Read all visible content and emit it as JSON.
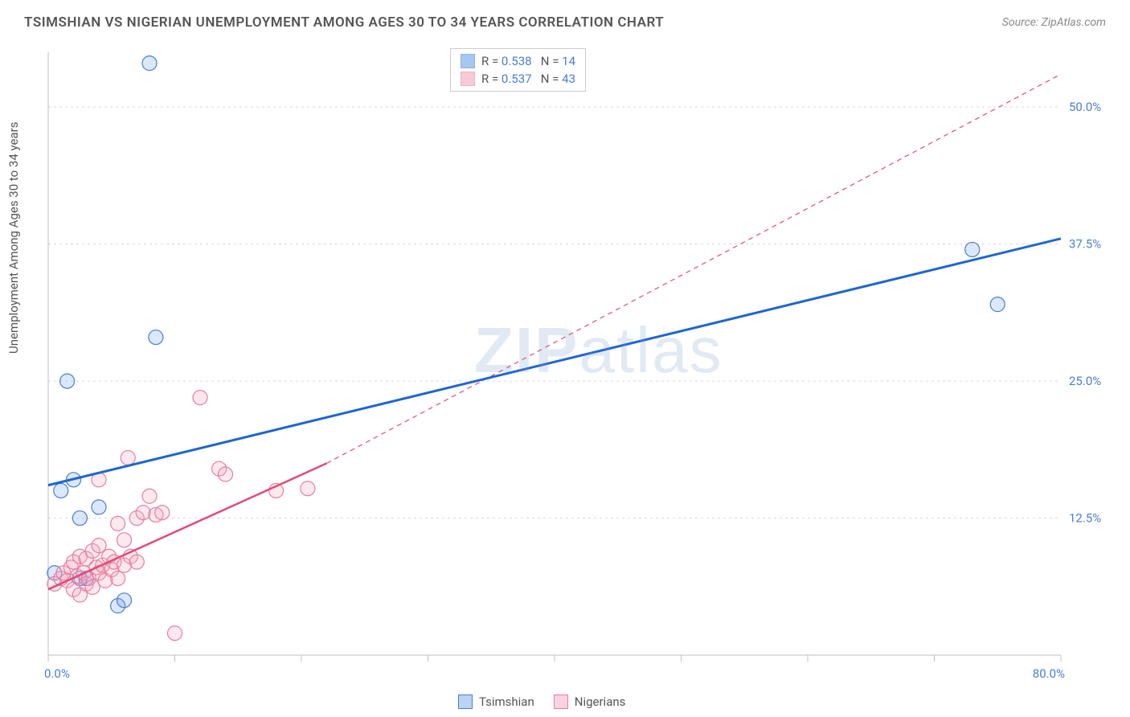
{
  "title": "TSIMSHIAN VS NIGERIAN UNEMPLOYMENT AMONG AGES 30 TO 34 YEARS CORRELATION CHART",
  "source": "Source: ZipAtlas.com",
  "ylabel": "Unemployment Among Ages 30 to 34 years",
  "watermark": "ZIPatlas",
  "chart": {
    "type": "scatter",
    "plot_bg": "#ffffff",
    "grid_color": "#d8d8d8",
    "axis_color": "#bfbfbf",
    "tick_color": "#bfbfbf",
    "tick_label_color": "#4a7dd0",
    "text_color": "#555555",
    "xlim": [
      0,
      80
    ],
    "ylim": [
      0,
      55
    ],
    "x_ticks": [
      0,
      10,
      20,
      30,
      40,
      50,
      60,
      70,
      80
    ],
    "x_tick_labels": {
      "0": "0.0%",
      "80": "80.0%"
    },
    "y_gridlines": [
      12.5,
      25.0,
      37.5,
      50.0
    ],
    "y_tick_labels": [
      "12.5%",
      "25.0%",
      "37.5%",
      "50.0%"
    ],
    "marker_radius": 9,
    "marker_fill_opacity": 0.25,
    "series": [
      {
        "name": "Tsimshian",
        "color": "#6aa3e8",
        "stroke": "#4a7dd0",
        "line_color": "#1f66d0",
        "line_width": 3,
        "line_dash": "solid",
        "R": "0.538",
        "N": "14",
        "points": [
          [
            0.5,
            7.5
          ],
          [
            1.0,
            15.0
          ],
          [
            1.5,
            25.0
          ],
          [
            2.0,
            16.0
          ],
          [
            2.5,
            12.5
          ],
          [
            3.0,
            7.0
          ],
          [
            4.0,
            13.5
          ],
          [
            5.5,
            4.5
          ],
          [
            6.0,
            5.0
          ],
          [
            8.0,
            54.0
          ],
          [
            8.5,
            29.0
          ],
          [
            73.0,
            37.0
          ],
          [
            75.0,
            32.0
          ],
          [
            2.5,
            7.0
          ]
        ],
        "trend_line": [
          [
            0,
            15.5
          ],
          [
            80,
            38.0
          ]
        ],
        "trend_extent": [
          0,
          80
        ]
      },
      {
        "name": "Nigerians",
        "color": "#f4a6bb",
        "stroke": "#e77da0",
        "line_color": "#e24a7a",
        "line_width": 2.5,
        "line_dash": "solid",
        "R": "0.537",
        "N": "43",
        "dashed_extension": {
          "dash": "6,5",
          "from": [
            22,
            17.5
          ],
          "to": [
            80,
            53
          ]
        },
        "points": [
          [
            0.5,
            6.5
          ],
          [
            1.0,
            7.0
          ],
          [
            1.2,
            7.5
          ],
          [
            1.5,
            6.8
          ],
          [
            1.8,
            8.0
          ],
          [
            2.0,
            6.0
          ],
          [
            2.0,
            8.5
          ],
          [
            2.3,
            7.2
          ],
          [
            2.5,
            5.5
          ],
          [
            2.5,
            9.0
          ],
          [
            2.8,
            7.5
          ],
          [
            3.0,
            6.5
          ],
          [
            3.0,
            8.8
          ],
          [
            3.2,
            7.0
          ],
          [
            3.5,
            9.5
          ],
          [
            3.5,
            6.2
          ],
          [
            3.8,
            8.0
          ],
          [
            4.0,
            7.5
          ],
          [
            4.0,
            10.0
          ],
          [
            4.3,
            8.2
          ],
          [
            4.5,
            6.8
          ],
          [
            4.8,
            9.0
          ],
          [
            5.0,
            7.8
          ],
          [
            5.2,
            8.5
          ],
          [
            5.5,
            7.0
          ],
          [
            5.5,
            12.0
          ],
          [
            6.0,
            8.2
          ],
          [
            6.0,
            10.5
          ],
          [
            6.3,
            18.0
          ],
          [
            6.5,
            9.0
          ],
          [
            7.0,
            12.5
          ],
          [
            7.0,
            8.5
          ],
          [
            7.5,
            13.0
          ],
          [
            8.0,
            14.5
          ],
          [
            8.5,
            12.8
          ],
          [
            9.0,
            13.0
          ],
          [
            10.0,
            2.0
          ],
          [
            12.0,
            23.5
          ],
          [
            13.5,
            17.0
          ],
          [
            14.0,
            16.5
          ],
          [
            18.0,
            15.0
          ],
          [
            20.5,
            15.2
          ],
          [
            4.0,
            16.0
          ]
        ],
        "trend_line": [
          [
            0,
            6.0
          ],
          [
            22,
            17.5
          ]
        ],
        "trend_extent": [
          0,
          22
        ]
      }
    ],
    "legend_top": {
      "border_color": "#cccccc",
      "label_R": "R =",
      "label_N": "N =",
      "value_color": "#4a7dd0"
    },
    "legend_bottom": [
      {
        "label": "Tsimshian",
        "fill": "#b9d4f5",
        "stroke": "#4a7dd0"
      },
      {
        "label": "Nigerians",
        "fill": "#fcd3df",
        "stroke": "#e77da0"
      }
    ]
  }
}
